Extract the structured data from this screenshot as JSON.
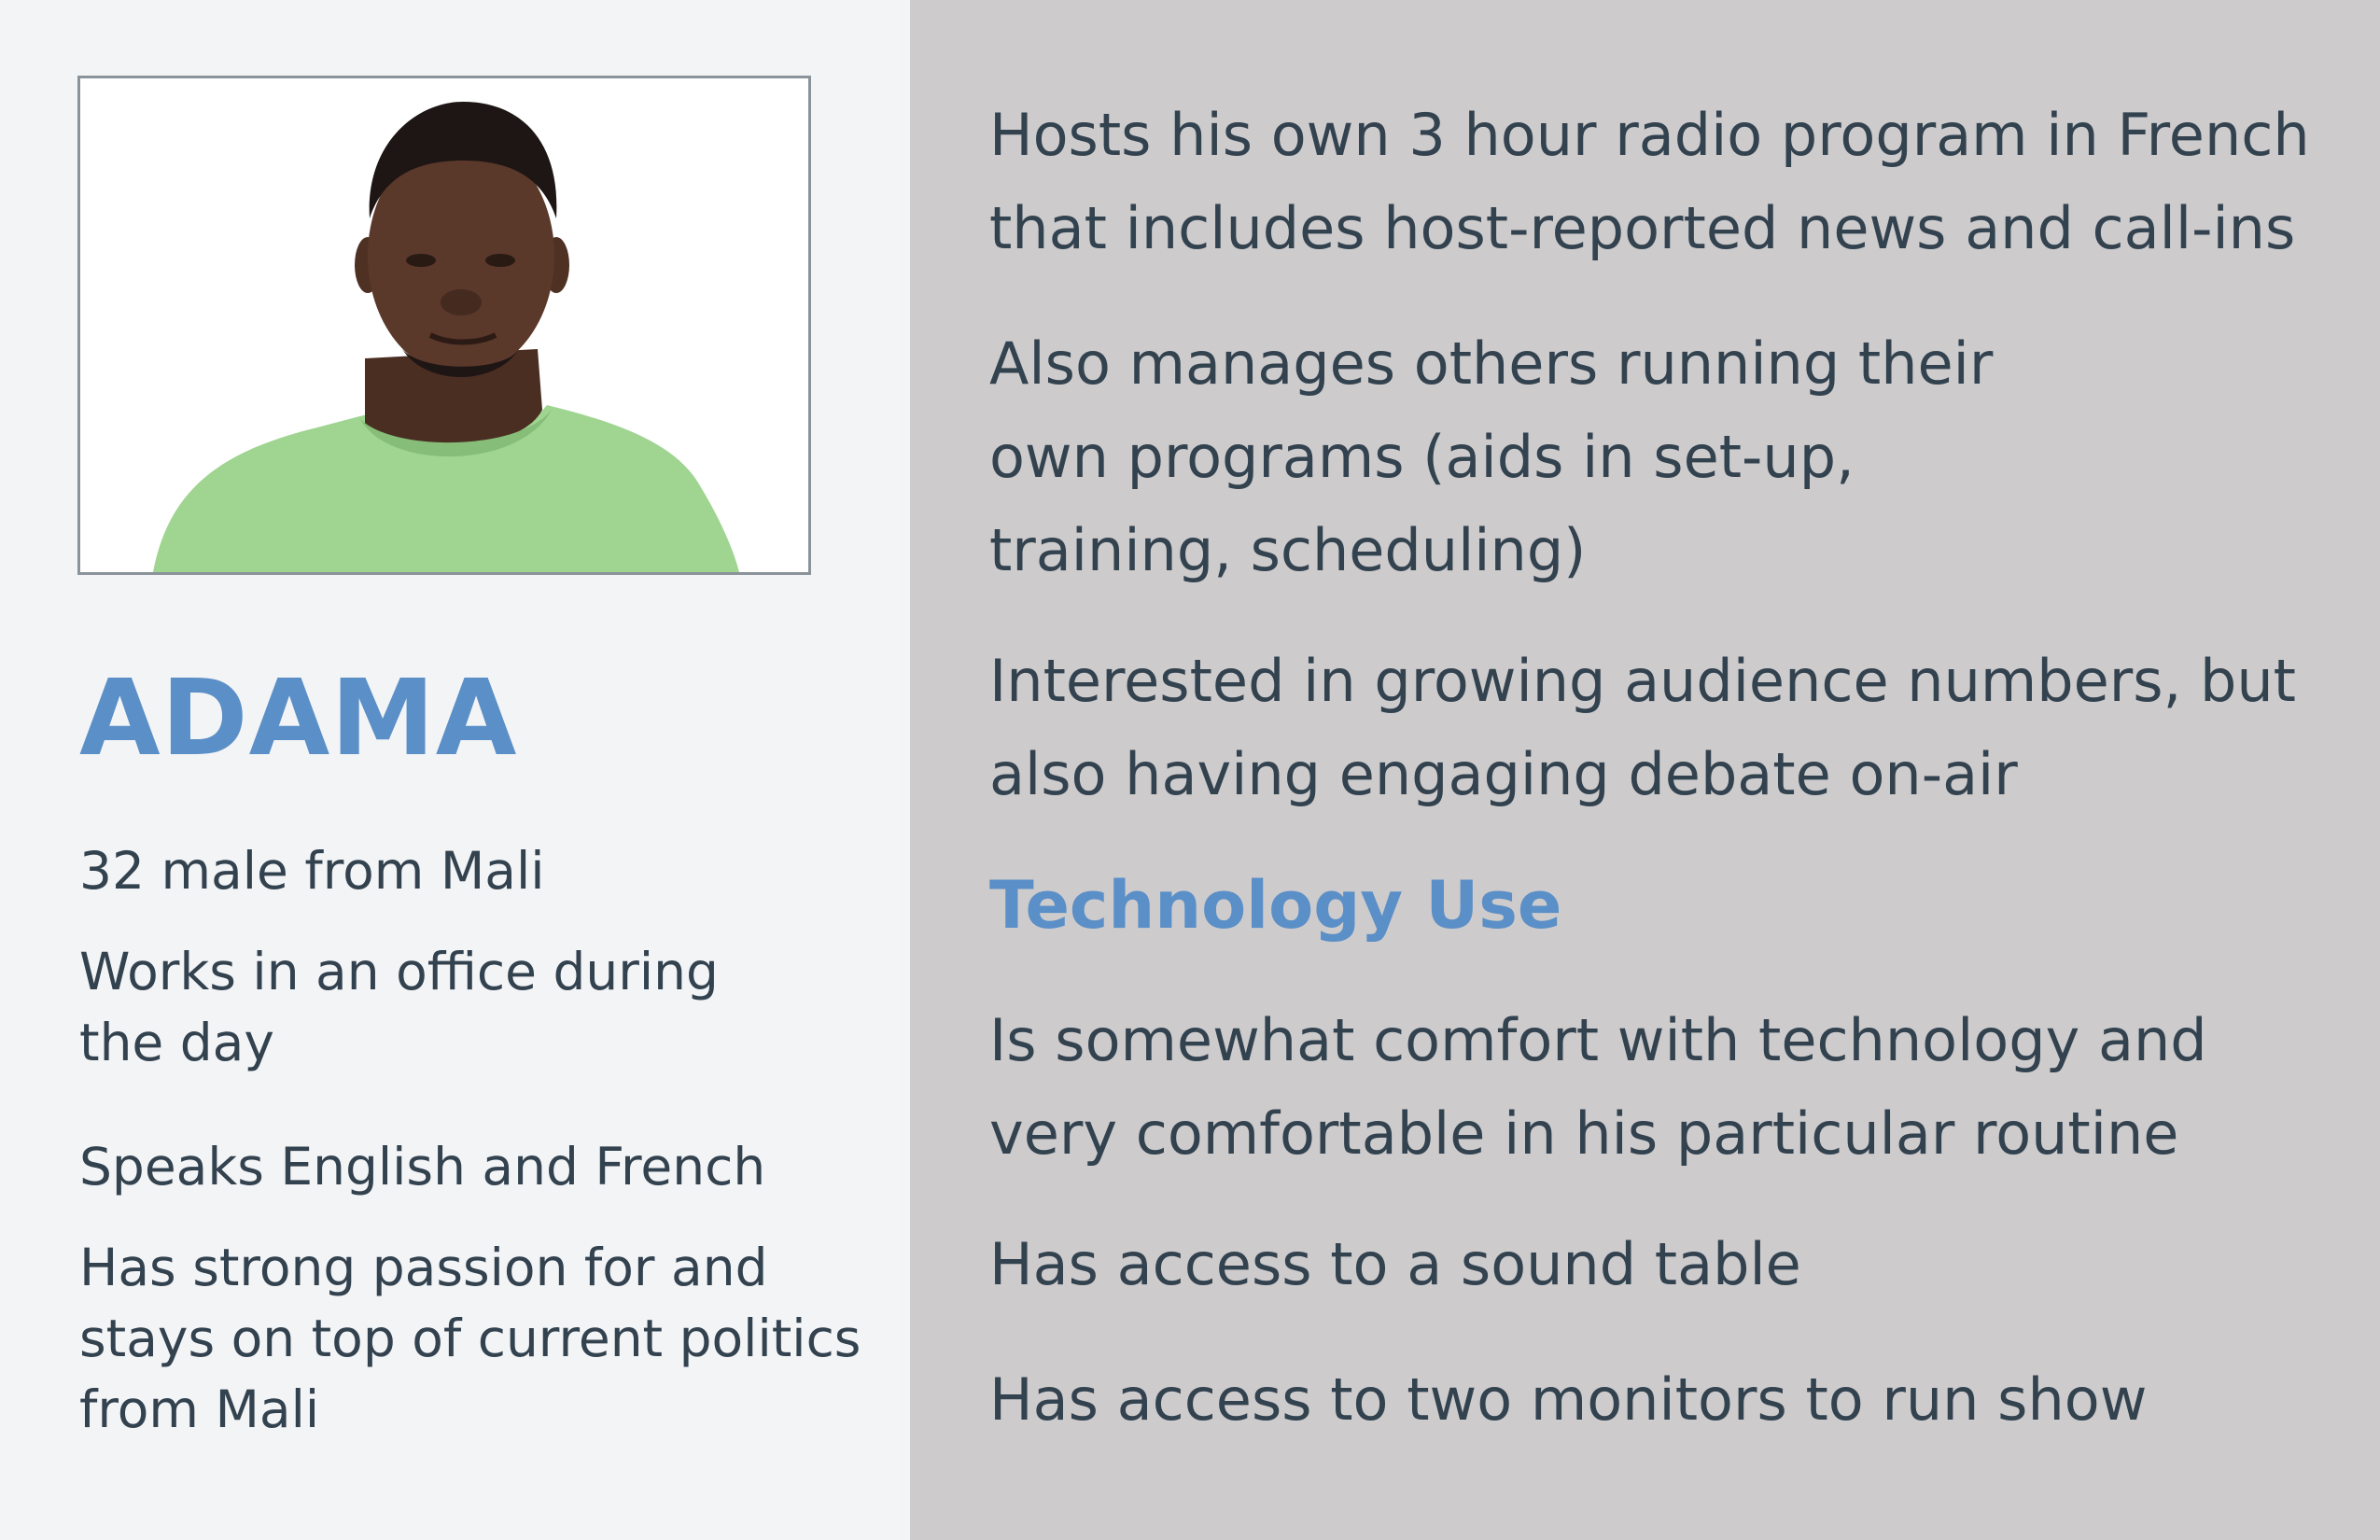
{
  "profile": {
    "name": "ADAMA",
    "photo_icon": "person-portrait",
    "details": [
      "32 male from Mali",
      "Works in an office during the day",
      "Speaks English and French",
      "Has strong passion for and stays on top of current politics from Mali"
    ]
  },
  "role": {
    "items": [
      "Hosts his own 3 hour radio program in French that includes host-reported news and call-ins",
      "Also manages others running their own programs (aids in set-up, training, scheduling)",
      "Interested in growing audience numbers, but also having engaging debate on-air"
    ]
  },
  "technology": {
    "heading": "Technology Use",
    "items": [
      "Is somewhat comfort with technology and very comfortable in his particular routine",
      "Has access to a sound table",
      "Has access to two monitors to run show"
    ]
  },
  "colors": {
    "accent": "#5b8fc7",
    "text": "#33424f",
    "left_panel": "#f3f4f6",
    "right_panel": "#cdcbcc"
  }
}
